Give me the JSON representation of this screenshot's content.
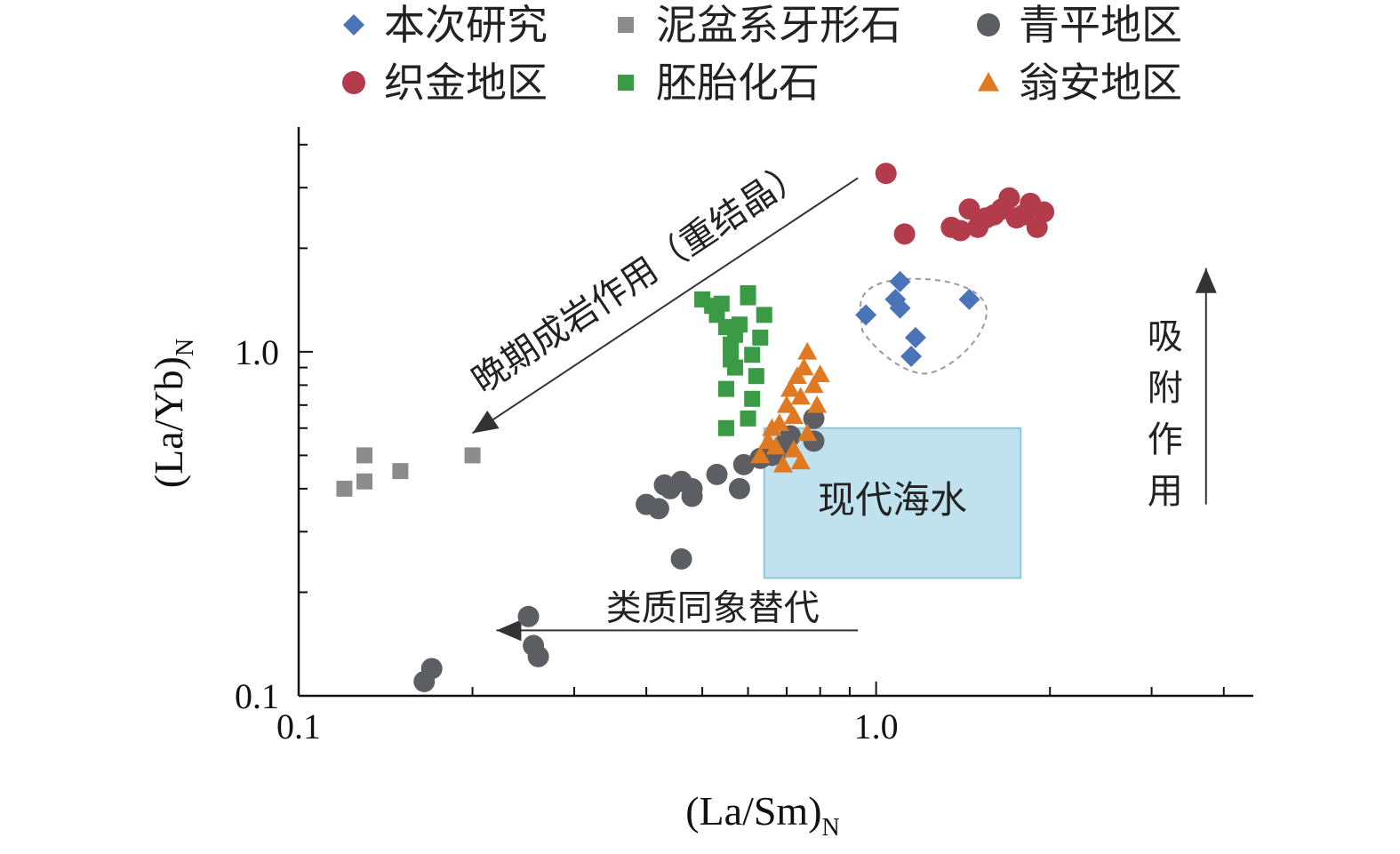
{
  "chart_data": {
    "type": "scatter",
    "xlabel": "(La/Sm)",
    "xlabel_sub": "N",
    "ylabel": "(La/Yb)",
    "ylabel_sub": "N",
    "x_scale": "log",
    "y_scale": "log",
    "xlim": [
      0.1,
      4.5
    ],
    "ylim": [
      0.1,
      4.5
    ],
    "x_ticks": [
      {
        "value": 0.1,
        "label": "0.1"
      },
      {
        "value": 1.0,
        "label": "1.0"
      }
    ],
    "y_ticks": [
      {
        "value": 0.1,
        "label": "0.1"
      },
      {
        "value": 1.0,
        "label": "1.0"
      }
    ],
    "grid": false,
    "legend_position": "top",
    "series": [
      {
        "name": "本次研究",
        "marker": "diamond",
        "color": "#4a73b8",
        "points": [
          [
            0.96,
            1.28
          ],
          [
            1.1,
            1.6
          ],
          [
            1.08,
            1.42
          ],
          [
            1.1,
            1.34
          ],
          [
            1.45,
            1.42
          ],
          [
            1.17,
            1.1
          ],
          [
            1.15,
            0.97
          ]
        ]
      },
      {
        "name": "泥盆系牙形石",
        "marker": "square",
        "color": "#8c8c8c",
        "points": [
          [
            0.12,
            0.4
          ],
          [
            0.13,
            0.5
          ],
          [
            0.13,
            0.42
          ],
          [
            0.15,
            0.45
          ],
          [
            0.2,
            0.5
          ]
        ]
      },
      {
        "name": "青平地区",
        "marker": "circle",
        "color": "#5c5e63",
        "points": [
          [
            0.165,
            0.11
          ],
          [
            0.17,
            0.12
          ],
          [
            0.25,
            0.17
          ],
          [
            0.255,
            0.14
          ],
          [
            0.26,
            0.13
          ],
          [
            0.4,
            0.36
          ],
          [
            0.42,
            0.35
          ],
          [
            0.43,
            0.41
          ],
          [
            0.44,
            0.4
          ],
          [
            0.46,
            0.42
          ],
          [
            0.48,
            0.4
          ],
          [
            0.48,
            0.38
          ],
          [
            0.46,
            0.25
          ],
          [
            0.53,
            0.44
          ],
          [
            0.58,
            0.4
          ],
          [
            0.59,
            0.47
          ],
          [
            0.63,
            0.49
          ],
          [
            0.66,
            0.5
          ],
          [
            0.68,
            0.52
          ],
          [
            0.7,
            0.55
          ],
          [
            0.71,
            0.57
          ],
          [
            0.78,
            0.64
          ],
          [
            0.78,
            0.55
          ]
        ]
      },
      {
        "name": "织金地区",
        "marker": "circle",
        "color": "#b33c4c",
        "points": [
          [
            1.04,
            3.3
          ],
          [
            1.12,
            2.2
          ],
          [
            1.35,
            2.3
          ],
          [
            1.4,
            2.25
          ],
          [
            1.45,
            2.6
          ],
          [
            1.5,
            2.3
          ],
          [
            1.55,
            2.45
          ],
          [
            1.6,
            2.5
          ],
          [
            1.65,
            2.6
          ],
          [
            1.7,
            2.8
          ],
          [
            1.75,
            2.45
          ],
          [
            1.8,
            2.5
          ],
          [
            1.85,
            2.7
          ],
          [
            1.9,
            2.3
          ],
          [
            1.95,
            2.55
          ]
        ]
      },
      {
        "name": "胚胎化石",
        "marker": "square",
        "color": "#3a9a45",
        "points": [
          [
            0.5,
            1.42
          ],
          [
            0.52,
            1.36
          ],
          [
            0.53,
            1.28
          ],
          [
            0.54,
            1.38
          ],
          [
            0.55,
            1.18
          ],
          [
            0.56,
            1.05
          ],
          [
            0.56,
            0.95
          ],
          [
            0.57,
            1.12
          ],
          [
            0.57,
            0.9
          ],
          [
            0.58,
            1.2
          ],
          [
            0.55,
            0.78
          ],
          [
            0.6,
            1.48
          ],
          [
            0.6,
            1.44
          ],
          [
            0.61,
            0.98
          ],
          [
            0.62,
            0.85
          ],
          [
            0.61,
            0.73
          ],
          [
            0.6,
            0.64
          ],
          [
            0.55,
            0.6
          ],
          [
            0.63,
            1.1
          ],
          [
            0.64,
            1.28
          ]
        ]
      },
      {
        "name": "翁安地区",
        "marker": "triangle",
        "color": "#e07a22",
        "points": [
          [
            0.63,
            0.5
          ],
          [
            0.65,
            0.55
          ],
          [
            0.66,
            0.6
          ],
          [
            0.67,
            0.53
          ],
          [
            0.68,
            0.62
          ],
          [
            0.69,
            0.47
          ],
          [
            0.7,
            0.7
          ],
          [
            0.71,
            0.78
          ],
          [
            0.72,
            0.65
          ],
          [
            0.72,
            0.52
          ],
          [
            0.73,
            0.85
          ],
          [
            0.74,
            0.74
          ],
          [
            0.75,
            0.9
          ],
          [
            0.76,
            1.0
          ],
          [
            0.76,
            0.58
          ],
          [
            0.78,
            0.8
          ],
          [
            0.79,
            0.7
          ],
          [
            0.8,
            0.86
          ],
          [
            0.74,
            0.48
          ]
        ]
      }
    ],
    "regions": [
      {
        "label": "现代海水",
        "x": [
          0.64,
          1.78
        ],
        "y": [
          0.22,
          0.6
        ],
        "color": "#bfe2ee"
      }
    ],
    "annotations": [
      {
        "text": "晚期成岩作用（重结晶）",
        "from": [
          0.93,
          3.2
        ],
        "to": [
          0.2,
          0.58
        ]
      },
      {
        "text": "类质同象替代",
        "from": [
          0.93,
          0.155
        ],
        "to": [
          0.22,
          0.155
        ]
      },
      {
        "text": "吸附作用",
        "from": [
          4.0,
          0.36
        ],
        "to": [
          4.0,
          1.75
        ]
      }
    ]
  }
}
